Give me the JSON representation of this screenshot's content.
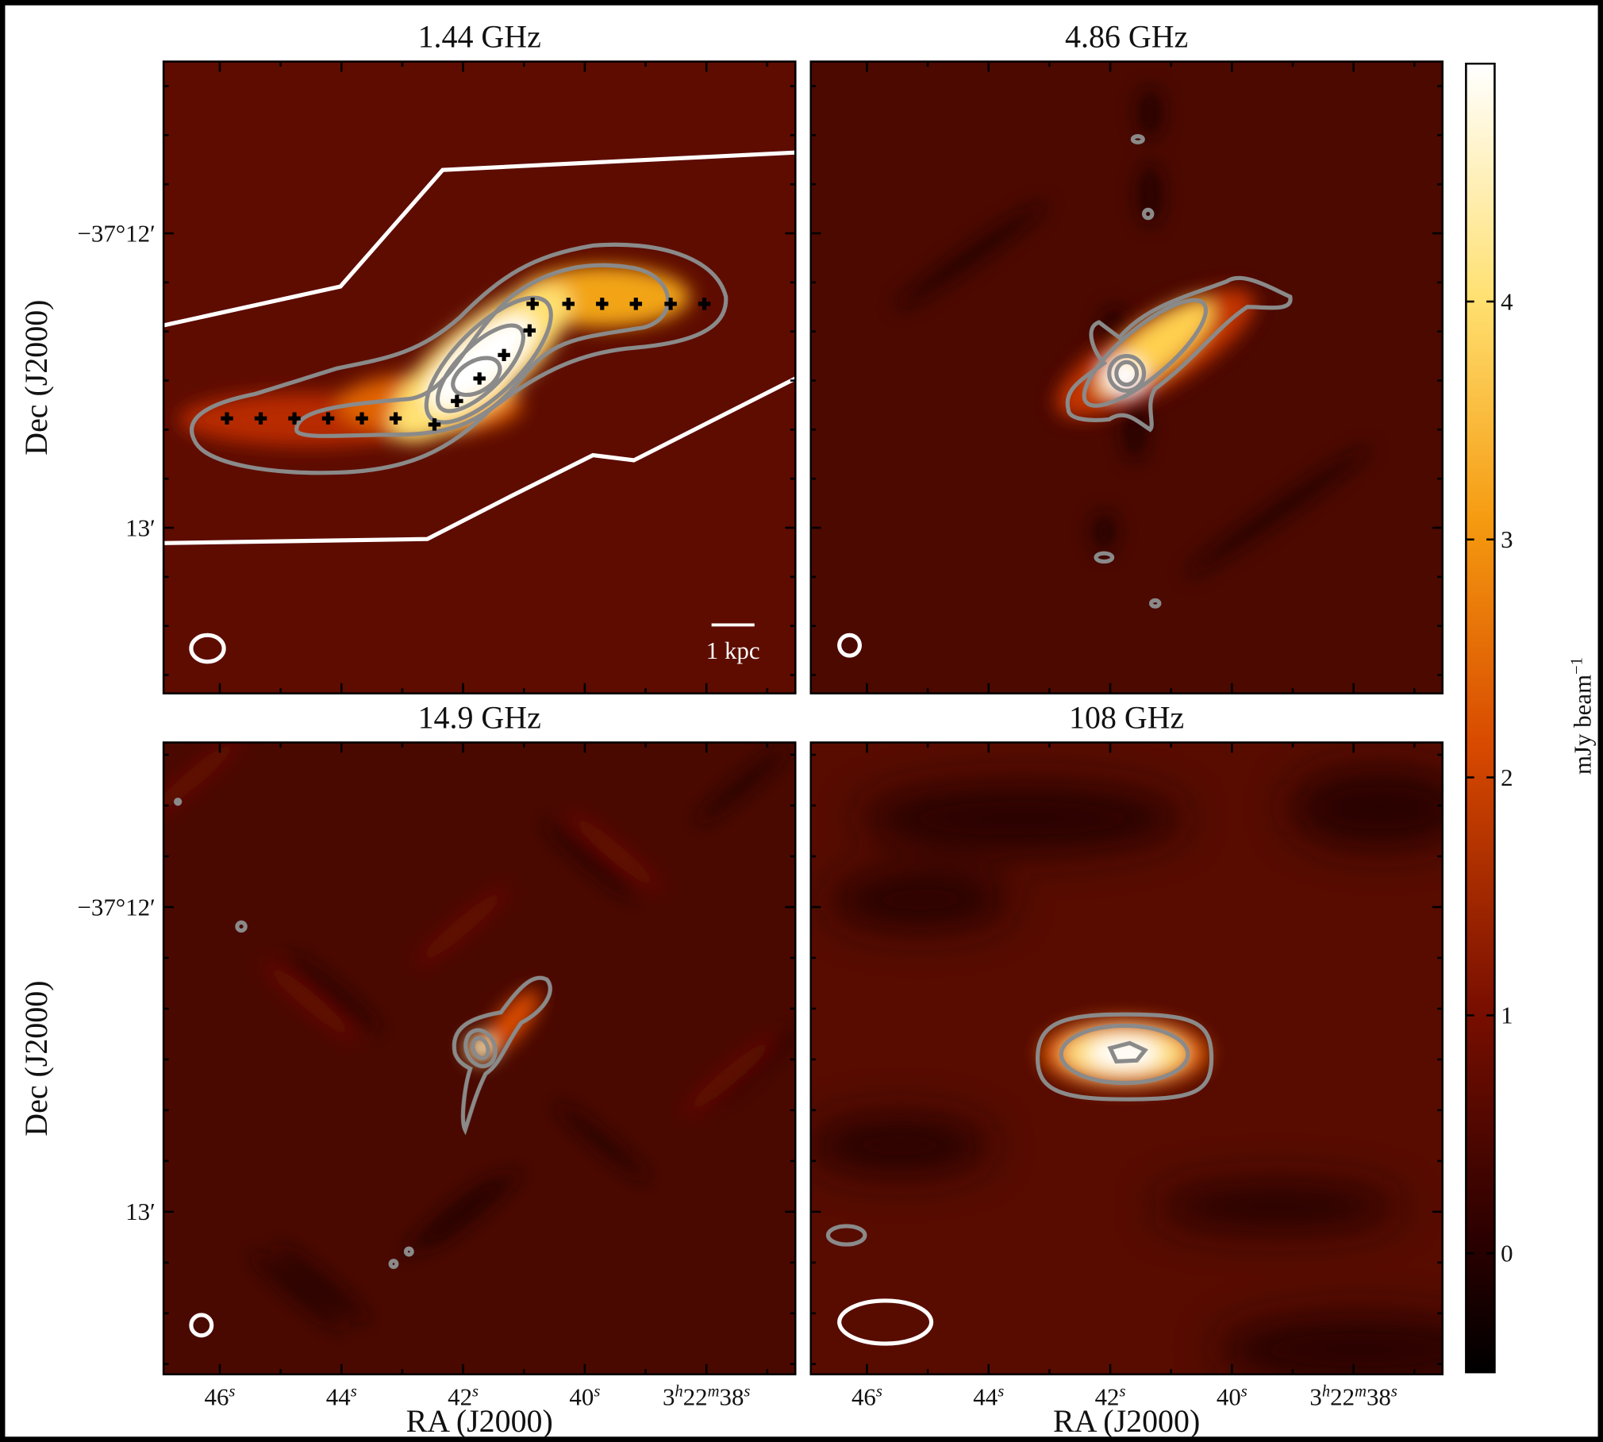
{
  "figure": {
    "panels": [
      {
        "title": "1.44 GHz"
      },
      {
        "title": "4.86 GHz"
      },
      {
        "title": "14.9 GHz"
      },
      {
        "title": "108 GHz"
      }
    ],
    "ylabel": "Dec (J2000)",
    "xlabel": "RA (J2000)",
    "xticks": [
      [
        "46",
        "s"
      ],
      [
        "44",
        "s"
      ],
      [
        "42",
        "s"
      ],
      [
        "40",
        "s"
      ],
      [
        "3",
        "h",
        "22",
        "m",
        "38",
        "s"
      ]
    ],
    "yticks": [
      "−37°12′",
      "13′"
    ],
    "scale_bar": "1 kpc",
    "colorbar": {
      "label": [
        "mJy beam",
        "−1"
      ],
      "clim": [
        -0.5,
        5.0
      ],
      "ticks": [
        0,
        1,
        2,
        3,
        4
      ]
    }
  }
}
